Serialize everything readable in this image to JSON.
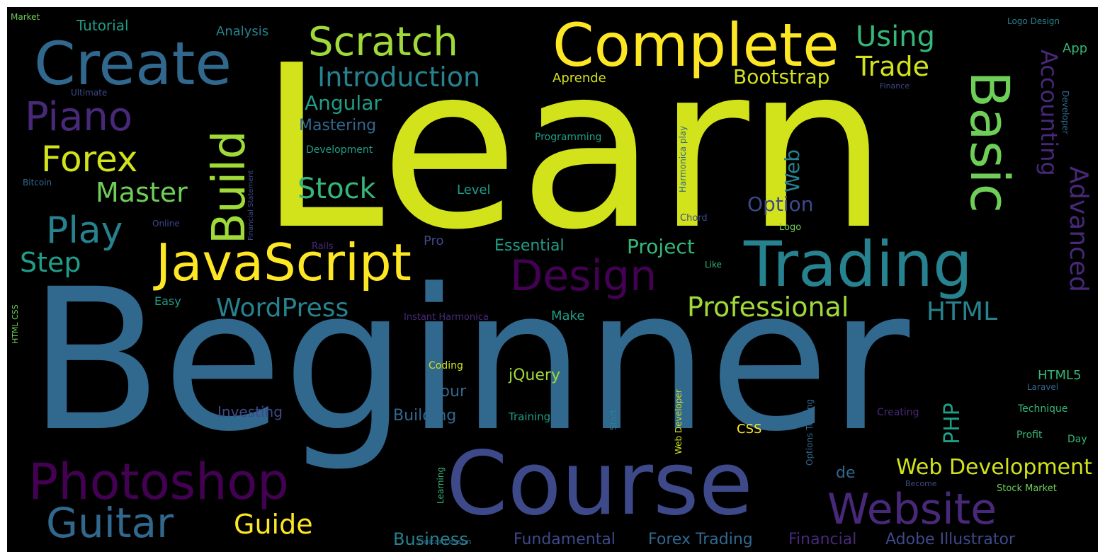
{
  "colors": {
    "background": "#000000",
    "frame": "#ffffff",
    "yellow_green": "#d2e21b",
    "yellow": "#fde725",
    "light_green": "#a0da39",
    "green": "#6ece58",
    "teal_green": "#35b779",
    "teal": "#1f9e89",
    "cyan": "#26828e",
    "blue": "#31688e",
    "indigo": "#3e4989",
    "purple": "#482878",
    "dark_purple": "#440154"
  },
  "words": [
    {
      "text": "Learn"
    },
    {
      "text": "Beginner"
    },
    {
      "text": "Course"
    },
    {
      "text": "Complete"
    },
    {
      "text": "Create"
    },
    {
      "text": "Trading"
    },
    {
      "text": "JavaScript"
    },
    {
      "text": "Basic"
    },
    {
      "text": "Build"
    },
    {
      "text": "Photoshop"
    },
    {
      "text": "Website"
    },
    {
      "text": "Design"
    },
    {
      "text": "Guitar"
    },
    {
      "text": "Scratch"
    },
    {
      "text": "Piano"
    },
    {
      "text": "Forex"
    },
    {
      "text": "Play"
    },
    {
      "text": "Introduction"
    },
    {
      "text": "Professional"
    },
    {
      "text": "Accounting"
    },
    {
      "text": "Advanced"
    },
    {
      "text": "WordPress"
    },
    {
      "text": "Stock"
    },
    {
      "text": "Web Development"
    },
    {
      "text": "Master"
    },
    {
      "text": "Using"
    },
    {
      "text": "Trade"
    },
    {
      "text": "Guide"
    },
    {
      "text": "HTML"
    },
    {
      "text": "Step"
    },
    {
      "text": "Bootstrap"
    },
    {
      "text": "Angular"
    },
    {
      "text": "Web"
    },
    {
      "text": "Option"
    },
    {
      "text": "Business"
    },
    {
      "text": "Project"
    },
    {
      "text": "PHP"
    },
    {
      "text": "Fundamental"
    },
    {
      "text": "Forex Trading"
    },
    {
      "text": "Adobe Illustrator"
    },
    {
      "text": "Financial"
    },
    {
      "text": "Mastering"
    },
    {
      "text": "Building"
    },
    {
      "text": "Essential"
    },
    {
      "text": "Tutorial"
    },
    {
      "text": "Analysis"
    },
    {
      "text": "Investing"
    },
    {
      "text": "jQuery"
    },
    {
      "text": "Hour"
    },
    {
      "text": "Make"
    },
    {
      "text": "de"
    },
    {
      "text": "Aprende"
    },
    {
      "text": "HTML5"
    },
    {
      "text": "App"
    },
    {
      "text": "Level"
    },
    {
      "text": "Pro"
    },
    {
      "text": "CSS"
    },
    {
      "text": "Programming"
    },
    {
      "text": "Development"
    },
    {
      "text": "Coding"
    },
    {
      "text": "Training"
    },
    {
      "text": "Technique"
    },
    {
      "text": "Profit"
    },
    {
      "text": "Day"
    },
    {
      "text": "Stock Market"
    },
    {
      "text": "Instant Harmonica"
    },
    {
      "text": "Easy"
    },
    {
      "text": "Creating"
    },
    {
      "text": "Laravel"
    },
    {
      "text": "Chord"
    },
    {
      "text": "Logo"
    },
    {
      "text": "Like"
    },
    {
      "text": "Rails"
    },
    {
      "text": "Online"
    },
    {
      "text": "Bitcoin"
    },
    {
      "text": "Ultimate"
    },
    {
      "text": "Market"
    },
    {
      "text": "Logo Design"
    },
    {
      "text": "Finance"
    },
    {
      "text": "Guitar Lesson"
    },
    {
      "text": "Become"
    },
    {
      "text": "Developer"
    },
    {
      "text": "Harmonica play"
    },
    {
      "text": "Financial Statement"
    },
    {
      "text": "HTML CSS"
    },
    {
      "text": "Web Developer"
    },
    {
      "text": "Start"
    },
    {
      "text": "Learning"
    },
    {
      "text": "Options Trading"
    }
  ]
}
